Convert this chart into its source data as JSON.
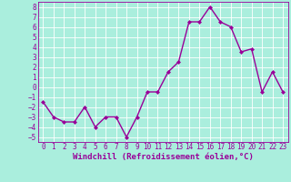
{
  "x": [
    0,
    1,
    2,
    3,
    4,
    5,
    6,
    7,
    8,
    9,
    10,
    11,
    12,
    13,
    14,
    15,
    16,
    17,
    18,
    19,
    20,
    21,
    22,
    23
  ],
  "y": [
    -1.5,
    -3.0,
    -3.5,
    -3.5,
    -2.0,
    -4.0,
    -3.0,
    -3.0,
    -5.0,
    -3.0,
    -0.5,
    -0.5,
    1.5,
    2.5,
    6.5,
    6.5,
    8.0,
    6.5,
    6.0,
    3.5,
    3.8,
    -0.5,
    1.5,
    -0.5
  ],
  "line_color": "#990099",
  "marker": "D",
  "marker_size": 2,
  "bg_color": "#aaeedd",
  "grid_color": "#ffffff",
  "xlabel": "Windchill (Refroidissement éolien,°C)",
  "xlim": [
    -0.5,
    23.5
  ],
  "ylim": [
    -5.5,
    8.5
  ],
  "xticks": [
    0,
    1,
    2,
    3,
    4,
    5,
    6,
    7,
    8,
    9,
    10,
    11,
    12,
    13,
    14,
    15,
    16,
    17,
    18,
    19,
    20,
    21,
    22,
    23
  ],
  "yticks": [
    -5,
    -4,
    -3,
    -2,
    -1,
    0,
    1,
    2,
    3,
    4,
    5,
    6,
    7,
    8
  ],
  "xlabel_fontsize": 6.5,
  "tick_fontsize": 5.5,
  "line_width": 1.0
}
